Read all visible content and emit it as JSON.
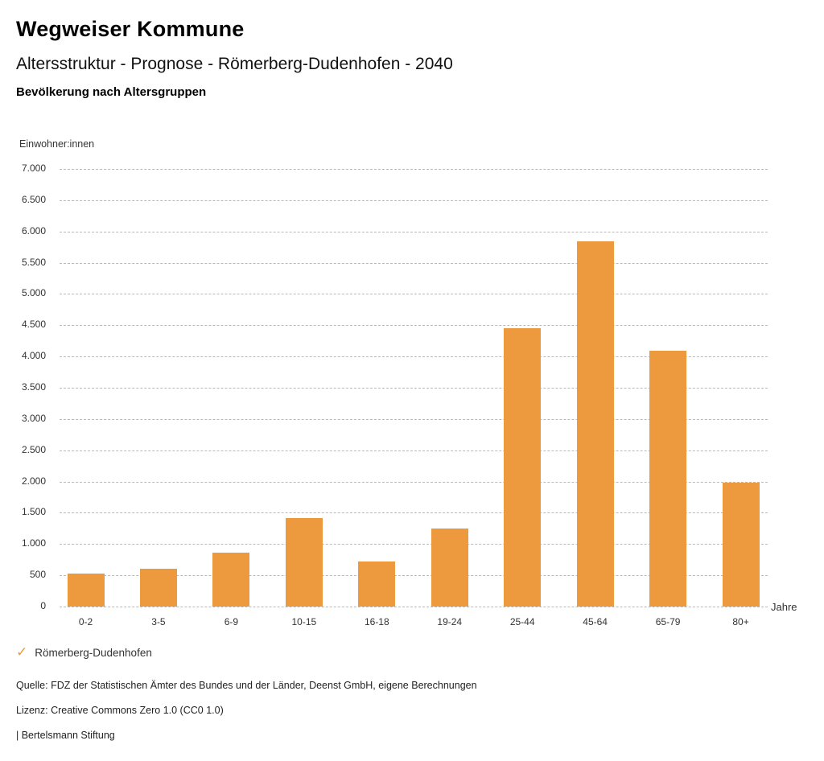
{
  "header": {
    "brand": "Wegweiser Kommune",
    "title": "Altersstruktur - Prognose - Römerberg-Dudenhofen - 2040",
    "section": "Bevölkerung nach Altersgruppen"
  },
  "chart_data": {
    "type": "bar",
    "title": "Altersstruktur - Prognose - Römerberg-Dudenhofen - 2040",
    "subtitle": "Bevölkerung nach Altersgruppen",
    "categories": [
      "0-2",
      "3-5",
      "6-9",
      "10-15",
      "16-18",
      "19-24",
      "25-44",
      "45-64",
      "65-79",
      "80+"
    ],
    "series": [
      {
        "name": "Römerberg-Dudenhofen",
        "values": [
          530,
          600,
          860,
          1410,
          720,
          1250,
          4450,
          5840,
          4090,
          1980
        ],
        "color": "#EC9A3D"
      }
    ],
    "xlabel": "Jahre",
    "ylabel": "Einwohner:innen",
    "ylim": [
      0,
      7000
    ],
    "ytick_step": 500,
    "ytick_labels": [
      "0",
      "500",
      "1.000",
      "1.500",
      "2.000",
      "2.500",
      "3.000",
      "3.500",
      "4.000",
      "4.500",
      "5.000",
      "5.500",
      "6.000",
      "6.500",
      "7.000"
    ],
    "grid": "horizontal-dashed",
    "gridline_color": "#b9b9b9",
    "legend_position": "bottom-left"
  },
  "legend": {
    "check_icon": "✓",
    "label": "Römerberg-Dudenhofen",
    "color": "#EC9A3D"
  },
  "footer": {
    "source": "Quelle: FDZ der Statistischen Ämter des Bundes und der Länder, Deenst GmbH, eigene Berechnungen",
    "license": "Lizenz: Creative Commons Zero 1.0 (CC0 1.0)",
    "attribution": "| Bertelsmann Stiftung"
  }
}
